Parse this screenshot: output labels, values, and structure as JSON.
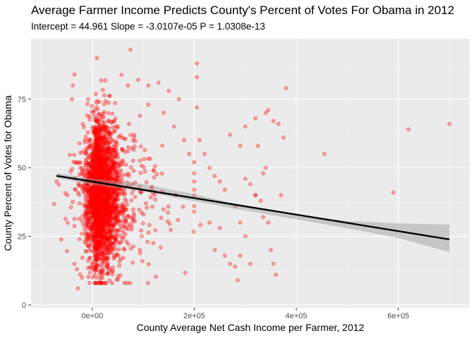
{
  "colors": {
    "panel_bg": "#EBEBEB",
    "grid_major": "#FFFFFF",
    "grid_minor": "#F5F5F5",
    "point": "#FF0000",
    "fit_line": "#000000",
    "ribbon": "#999999",
    "tick": "#333333"
  },
  "chart_data": {
    "type": "scatter",
    "title": "Average Farmer Income Predicts County's Percent of Votes For Obama in 2012",
    "subtitle": "Intercept = 44.961  Slope = -3.0107e-05  P = 1.0308e-13",
    "xlabel": "County Average Net Cash Income per Farmer, 2012",
    "ylabel": "County Percent of Votes for Obama",
    "xlim": [
      -120000,
      740000
    ],
    "ylim": [
      -1,
      97
    ],
    "x_ticks": [
      0,
      200000,
      400000,
      600000
    ],
    "x_tick_labels": [
      "0e+00",
      "2e+05",
      "4e+05",
      "6e+05"
    ],
    "y_ticks": [
      0,
      25,
      50,
      75
    ],
    "y_tick_labels": [
      "0",
      "25",
      "50",
      "75"
    ],
    "grid": true,
    "legend": "none",
    "fit": {
      "intercept": 44.961,
      "slope": -3.0107e-05,
      "x_range": [
        -70000,
        700000
      ],
      "ci_lower": [
        [
          -70000,
          46.3
        ],
        [
          0,
          43.8
        ],
        [
          100000,
          41.4
        ],
        [
          200000,
          37.8
        ],
        [
          300000,
          34.4
        ],
        [
          400000,
          31.2
        ],
        [
          500000,
          28.0
        ],
        [
          600000,
          24.4
        ],
        [
          700000,
          19.3
        ]
      ],
      "ci_upper": [
        [
          -70000,
          48.1
        ],
        [
          0,
          46.1
        ],
        [
          100000,
          44.1
        ],
        [
          200000,
          40.3
        ],
        [
          300000,
          36.1
        ],
        [
          400000,
          32.8
        ],
        [
          500000,
          30.6
        ],
        [
          600000,
          29.7
        ],
        [
          700000,
          29.3
        ]
      ]
    },
    "cluster": {
      "count": 2600,
      "x_center": 5000,
      "x_spread": 35000,
      "y_center": 40,
      "y_spread": 13,
      "y_min": 8,
      "y_max": 90
    },
    "points": [
      [
        -70000,
        45
      ],
      [
        -40000,
        75
      ],
      [
        -38000,
        80
      ],
      [
        -35000,
        84
      ],
      [
        -30000,
        52
      ],
      [
        -35000,
        15
      ],
      [
        -30000,
        13
      ],
      [
        -28000,
        6
      ],
      [
        -25000,
        24
      ],
      [
        -20000,
        26
      ],
      [
        -20000,
        10
      ],
      [
        75000,
        93
      ],
      [
        70000,
        80
      ],
      [
        90000,
        82
      ],
      [
        110000,
        80
      ],
      [
        130000,
        81
      ],
      [
        150000,
        78
      ],
      [
        170000,
        75
      ],
      [
        110000,
        73
      ],
      [
        140000,
        70
      ],
      [
        160000,
        65
      ],
      [
        180000,
        60
      ],
      [
        190000,
        55
      ],
      [
        200000,
        52
      ],
      [
        200000,
        48
      ],
      [
        200000,
        45
      ],
      [
        200000,
        42
      ],
      [
        200000,
        40
      ],
      [
        200000,
        36
      ],
      [
        200000,
        34
      ],
      [
        205000,
        88
      ],
      [
        205000,
        83
      ],
      [
        205000,
        72
      ],
      [
        210000,
        60
      ],
      [
        220000,
        55
      ],
      [
        230000,
        50
      ],
      [
        240000,
        47
      ],
      [
        250000,
        45
      ],
      [
        260000,
        42
      ],
      [
        230000,
        30
      ],
      [
        250000,
        28
      ],
      [
        240000,
        20
      ],
      [
        260000,
        18
      ],
      [
        270000,
        15
      ],
      [
        280000,
        36
      ],
      [
        290000,
        30
      ],
      [
        300000,
        25
      ],
      [
        300000,
        46
      ],
      [
        310000,
        44
      ],
      [
        320000,
        40
      ],
      [
        330000,
        38
      ],
      [
        335000,
        48
      ],
      [
        340000,
        50
      ],
      [
        345000,
        30
      ],
      [
        280000,
        14
      ],
      [
        285000,
        9
      ],
      [
        290000,
        18
      ],
      [
        320000,
        40
      ],
      [
        270000,
        62
      ],
      [
        290000,
        58
      ],
      [
        300000,
        65
      ],
      [
        320000,
        68
      ],
      [
        325000,
        58
      ],
      [
        340000,
        70
      ],
      [
        345000,
        71
      ],
      [
        355000,
        67
      ],
      [
        365000,
        66
      ],
      [
        375000,
        61
      ],
      [
        310000,
        15
      ],
      [
        335000,
        32
      ],
      [
        350000,
        20
      ],
      [
        355000,
        15
      ],
      [
        360000,
        11
      ],
      [
        370000,
        40
      ],
      [
        380000,
        79
      ],
      [
        455000,
        55
      ],
      [
        590000,
        41
      ],
      [
        620000,
        64
      ],
      [
        700000,
        66
      ]
    ]
  }
}
